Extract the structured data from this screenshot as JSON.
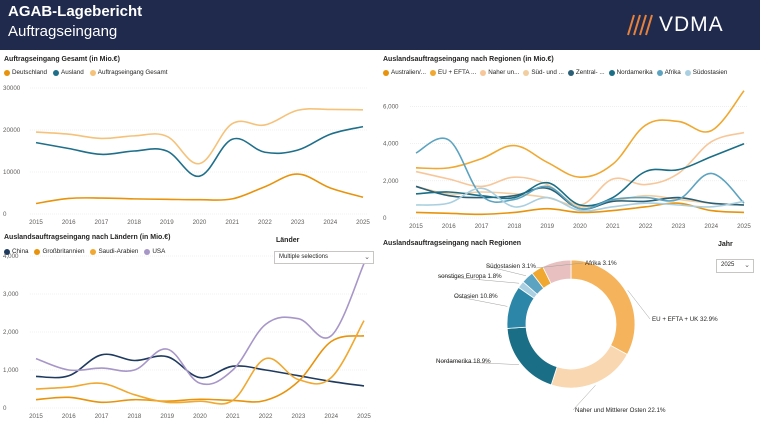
{
  "header": {
    "title": "AGAB-Lagebericht",
    "subtitle": "Auftragseingang",
    "logo_text": "VDMA",
    "colors": {
      "bg": "#1f2a4d",
      "logo_accent": "#e8823a"
    }
  },
  "filters": {
    "laender": {
      "label": "Länder",
      "value": "Multiple selections"
    },
    "jahr": {
      "label": "Jahr",
      "value": "2025"
    }
  },
  "chart_data": [
    {
      "id": "gesamt",
      "type": "line",
      "title": "Auftragseingang Gesamt (in Mio.€)",
      "x": [
        "2015",
        "2016",
        "2017",
        "2018",
        "2019",
        "2020",
        "2021",
        "2022",
        "2023",
        "2024",
        "2025"
      ],
      "ylim": [
        0,
        30000
      ],
      "yticks": [
        "0",
        "10000",
        "20000",
        "30000"
      ],
      "ytick_values": [
        0,
        10000,
        20000,
        30000
      ],
      "legend": "top-left",
      "series": [
        {
          "name": "Deutschland",
          "color": "#e8930c",
          "values": [
            2500,
            3700,
            3800,
            3600,
            3500,
            3400,
            3600,
            6500,
            9500,
            6200,
            4000
          ]
        },
        {
          "name": "Ausland",
          "color": "#1f6f8b",
          "values": [
            17000,
            15600,
            14200,
            15000,
            15000,
            9000,
            17800,
            14700,
            15200,
            19000,
            20800
          ]
        },
        {
          "name": "Auftragseingang Gesamt",
          "color": "#f5c27a",
          "values": [
            19500,
            19000,
            18000,
            18600,
            18500,
            12000,
            21500,
            21200,
            24700,
            24900,
            24800
          ]
        }
      ]
    },
    {
      "id": "regionen",
      "type": "line",
      "title": "Auslandsauftragseingang nach Regionen (in Mio.€)",
      "x": [
        "2015",
        "2016",
        "2017",
        "2018",
        "2019",
        "2020",
        "2021",
        "2022",
        "2023",
        "2024",
        "2025"
      ],
      "ylim": [
        0,
        7000
      ],
      "yticks": [
        "0",
        "2,000",
        "4,000",
        "6,000"
      ],
      "ytick_values": [
        0,
        2000,
        4000,
        6000
      ],
      "legend": "top-left",
      "series": [
        {
          "name": "Australien/...",
          "color": "#e8930c",
          "values": [
            300,
            250,
            200,
            300,
            500,
            300,
            400,
            600,
            800,
            400,
            300
          ]
        },
        {
          "name": "EU + EFTA ...",
          "color": "#f0a830",
          "values": [
            2700,
            2700,
            3200,
            3900,
            3000,
            2200,
            2900,
            5000,
            5200,
            4700,
            6850
          ]
        },
        {
          "name": "Naher un...",
          "color": "#f7c79a",
          "values": [
            2500,
            2100,
            1700,
            2200,
            1800,
            700,
            2100,
            1800,
            2400,
            4100,
            4600
          ]
        },
        {
          "name": "Süd- und ...",
          "color": "#f2cda0",
          "values": [
            1700,
            1300,
            1400,
            1300,
            1100,
            600,
            900,
            1200,
            1000,
            800,
            700
          ]
        },
        {
          "name": "Zentral- ...",
          "color": "#2b5f75",
          "values": [
            1700,
            1200,
            1100,
            1200,
            1600,
            500,
            900,
            900,
            1100,
            800,
            700
          ]
        },
        {
          "name": "Nordamerika",
          "color": "#1a6e86",
          "values": [
            1300,
            1400,
            1200,
            1100,
            1900,
            700,
            1100,
            2500,
            2600,
            3300,
            4000
          ]
        },
        {
          "name": "Afrika",
          "color": "#5ba3c0",
          "values": [
            3500,
            4200,
            1200,
            1000,
            1700,
            500,
            1000,
            1100,
            1000,
            2400,
            800
          ]
        },
        {
          "name": "Südostasien",
          "color": "#a9cfe0",
          "values": [
            700,
            800,
            1600,
            600,
            1100,
            400,
            600,
            800,
            700,
            600,
            900
          ]
        }
      ]
    },
    {
      "id": "laender",
      "type": "line",
      "title": "Auslandsauftragseingang nach Ländern (in Mio.€)",
      "x": [
        "2015",
        "2016",
        "2017",
        "2018",
        "2019",
        "2020",
        "2021",
        "2022",
        "2023",
        "2024",
        "2025"
      ],
      "ylim": [
        0,
        4000
      ],
      "yticks": [
        "0",
        "1,000",
        "2,000",
        "3,000",
        "4,000"
      ],
      "ytick_values": [
        0,
        1000,
        2000,
        3000,
        4000
      ],
      "legend": "top-left",
      "series": [
        {
          "name": "China",
          "color": "#1f3a5f",
          "values": [
            830,
            850,
            1400,
            1250,
            1350,
            800,
            1100,
            1000,
            850,
            700,
            580
          ]
        },
        {
          "name": "Großbritannien",
          "color": "#e8930c",
          "values": [
            220,
            280,
            150,
            220,
            180,
            230,
            200,
            200,
            700,
            1750,
            1900
          ]
        },
        {
          "name": "Saudi-Arabien",
          "color": "#f0a830",
          "values": [
            500,
            550,
            650,
            350,
            150,
            180,
            200,
            1300,
            750,
            800,
            2300
          ]
        },
        {
          "name": "USA",
          "color": "#a796c8",
          "values": [
            1300,
            1000,
            1050,
            1000,
            1550,
            650,
            1000,
            2200,
            2350,
            1900,
            3800
          ]
        }
      ]
    },
    {
      "id": "donut",
      "type": "pie",
      "title": "Auslandsauftragseingang nach Regionen",
      "categories": [
        "EU + EFTA + UK",
        "Naher und Mittlerer Osten",
        "Nordamerika",
        "Ostasien",
        "sonstiges Europa",
        "Südostasien",
        "Afrika",
        "Australien/Ozeanien"
      ],
      "labels": [
        "EU + EFTA + UK 32.9%",
        "Naher und Mittlerer Osten 22.1%",
        "Nordamerika 18.9%",
        "Ostasien 10.8%",
        "sonstiges Europa 1.8%",
        "Südostasien 3.1%",
        "Afrika 3.1%",
        ""
      ],
      "values": [
        32.9,
        22.1,
        18.9,
        10.8,
        1.8,
        3.1,
        3.1,
        7.3
      ],
      "colors": [
        "#f5b35c",
        "#f9d7b0",
        "#1a6e86",
        "#2b86a8",
        "#a9cfe0",
        "#5ba3c0",
        "#f0a830",
        "#e8c0c0"
      ]
    }
  ]
}
